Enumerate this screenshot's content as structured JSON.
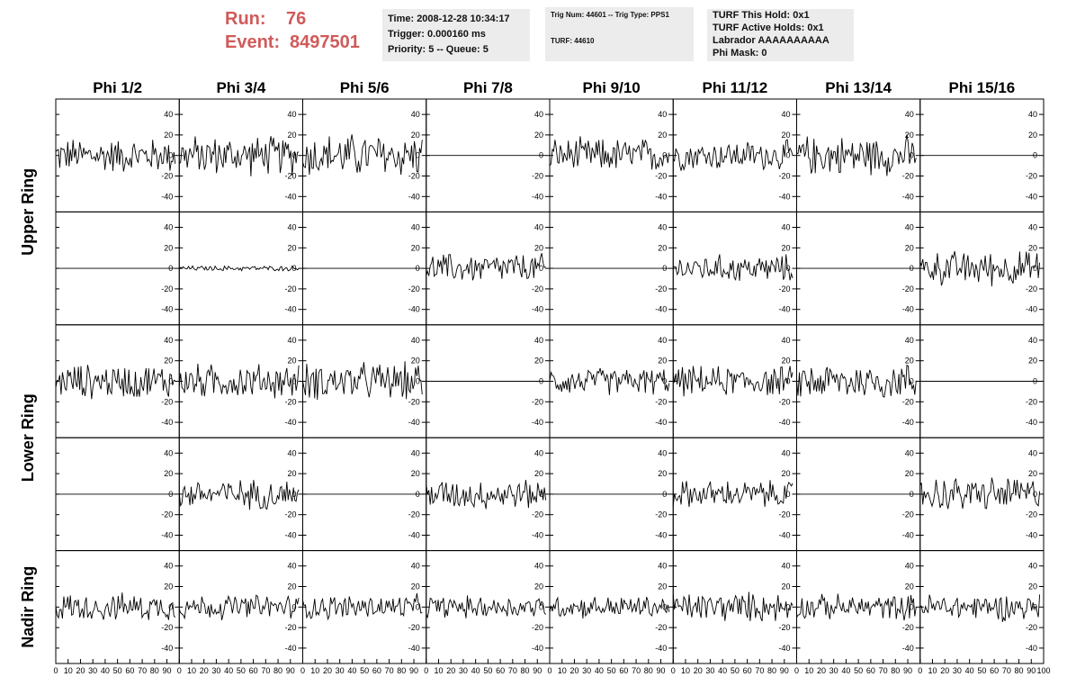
{
  "header": {
    "run_label": "Run:",
    "run_value": "76",
    "event_label": "Event:",
    "event_value": "8497501",
    "accent_color": "#d05a5a"
  },
  "info": {
    "time": "Time: 2008-12-28 10:34:17",
    "trigger": "Trigger: 0.000160 ms",
    "priority": "Priority: 5 -- Queue: 5",
    "trig_num": "Trig Num: 44601 -- Trig Type: PPS1",
    "turf": "TURF: 44610",
    "turf_hold": "TURF This Hold: 0x1",
    "turf_active": "TURF Active Holds: 0x1",
    "labrador": "Labrador AAAAAAAAAA",
    "phi_mask": "Phi Mask: 0"
  },
  "chart_data": {
    "type": "line",
    "columns": [
      "Phi 1/2",
      "Phi 3/4",
      "Phi 5/6",
      "Phi 7/8",
      "Phi 9/10",
      "Phi 11/12",
      "Phi 13/14",
      "Phi 15/16"
    ],
    "rows": [
      "Upper Ring",
      "Upper Ring",
      "Lower Ring",
      "Lower Ring",
      "Nadir Ring"
    ],
    "row_labels": [
      "Upper Ring",
      "Lower Ring",
      "Nadir Ring"
    ],
    "ylim": [
      -55,
      55
    ],
    "xlim": [
      0,
      100
    ],
    "y_ticks": [
      -40,
      -20,
      0,
      20,
      40
    ],
    "x_ticks": [
      0,
      10,
      20,
      30,
      40,
      50,
      60,
      70,
      80,
      90,
      100
    ],
    "samples": 90,
    "amplitude": [
      [
        14,
        16,
        18,
        0,
        14,
        12,
        16,
        0
      ],
      [
        0,
        2,
        0,
        12,
        0,
        11,
        0,
        14
      ],
      [
        14,
        14,
        15,
        0,
        11,
        12,
        15,
        0
      ],
      [
        0,
        12,
        0,
        12,
        0,
        11,
        0,
        14
      ],
      [
        11,
        10,
        10,
        9,
        9,
        12,
        10,
        11
      ]
    ],
    "line_color": "#000000"
  }
}
